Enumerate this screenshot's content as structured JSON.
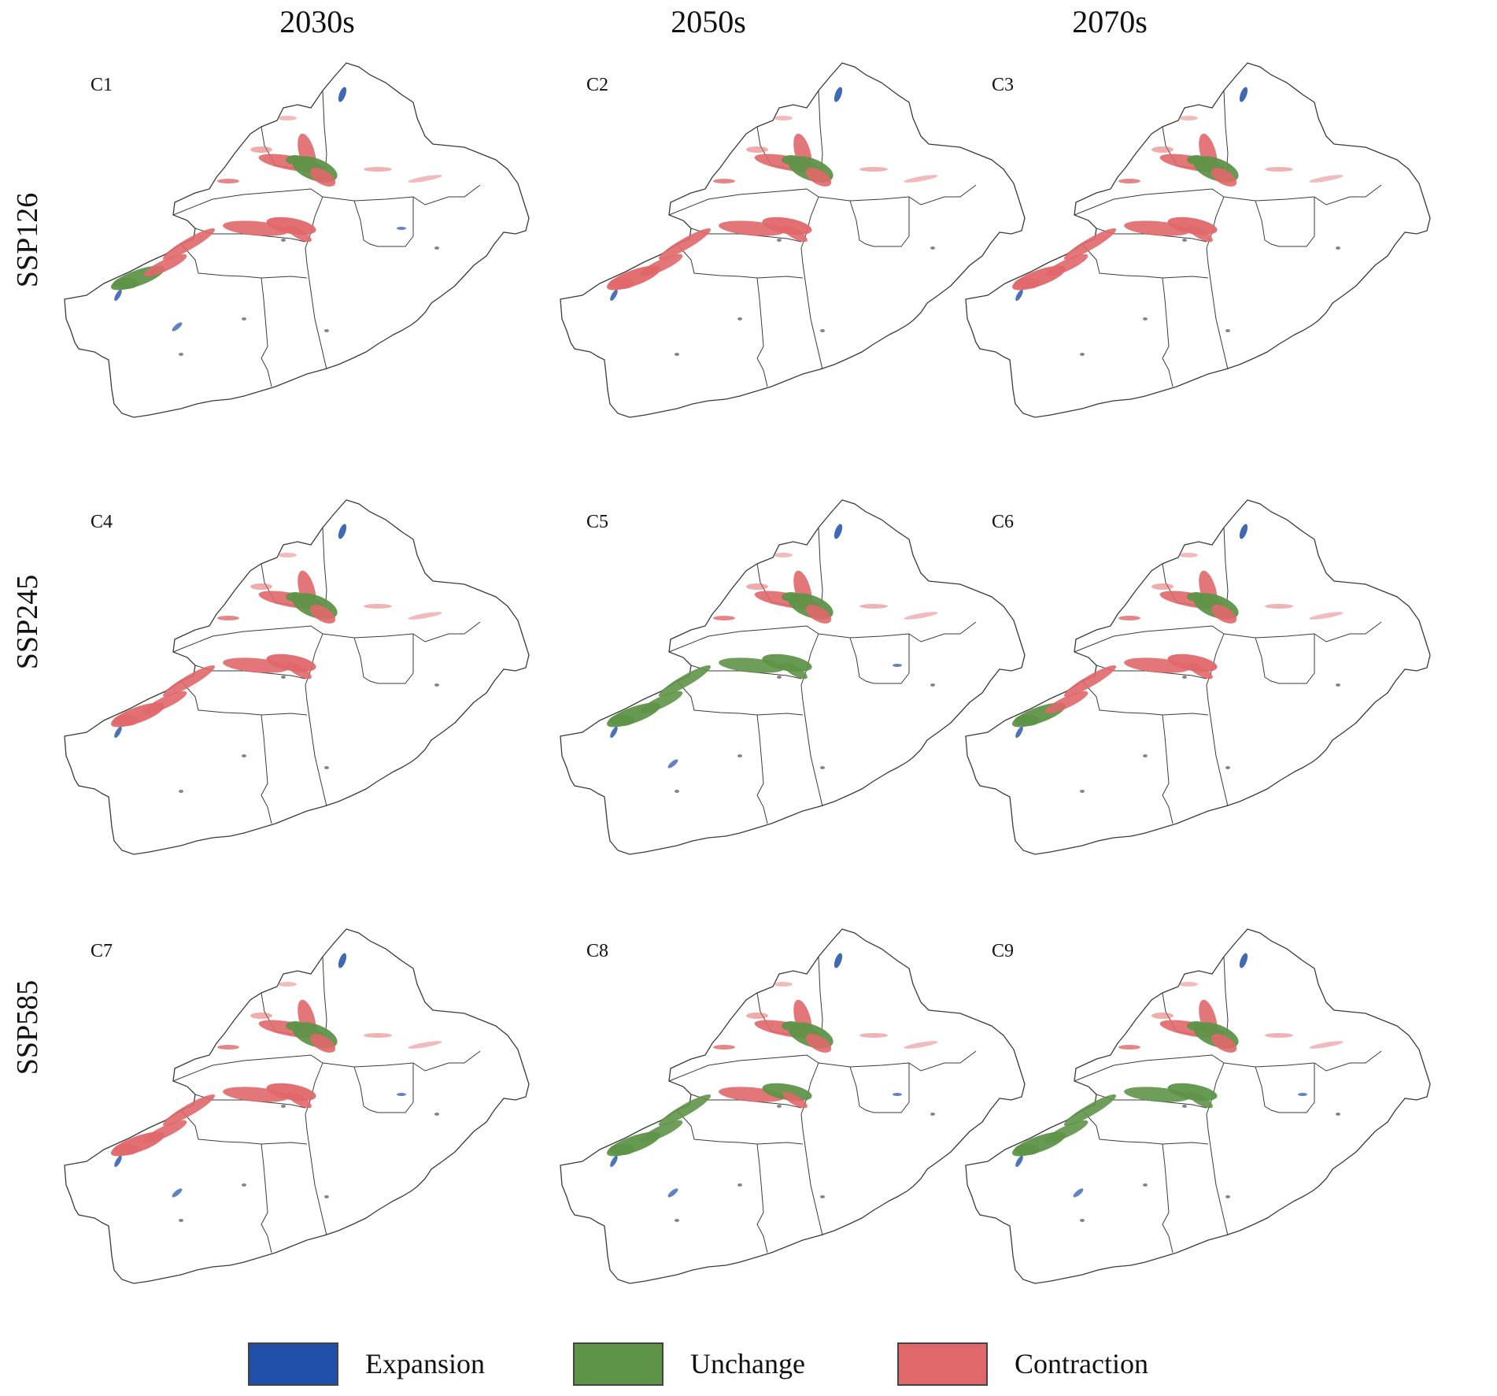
{
  "columns": [
    "2030s",
    "2050s",
    "2070s"
  ],
  "rows": [
    "SSP126",
    "SSP245",
    "SSP585"
  ],
  "panels": [
    {
      "id": "C1",
      "west": "mixed",
      "central": "contraction",
      "north": "mixed",
      "expansion": "some"
    },
    {
      "id": "C2",
      "west": "contraction",
      "central": "contraction",
      "north": "mixed",
      "expansion": "little"
    },
    {
      "id": "C3",
      "west": "contraction",
      "central": "contraction",
      "north": "mixed",
      "expansion": "little"
    },
    {
      "id": "C4",
      "west": "contraction",
      "central": "contraction",
      "north": "mixed",
      "expansion": "little"
    },
    {
      "id": "C5",
      "west": "unchanged",
      "central": "unchanged",
      "north": "mixed",
      "expansion": "some"
    },
    {
      "id": "C6",
      "west": "mixed",
      "central": "contraction",
      "north": "mixed",
      "expansion": "little"
    },
    {
      "id": "C7",
      "west": "contraction",
      "central": "contraction",
      "north": "mixed",
      "expansion": "some"
    },
    {
      "id": "C8",
      "west": "unchanged",
      "central": "mixed",
      "north": "mixed",
      "expansion": "some"
    },
    {
      "id": "C9",
      "west": "unchanged",
      "central": "unchanged",
      "north": "mixed",
      "expansion": "some"
    }
  ],
  "legend": [
    {
      "label": "Expansion",
      "color": "#1f4fa8"
    },
    {
      "label": "Unchange",
      "color": "#5e9448"
    },
    {
      "label": "Contraction",
      "color": "#e0676a"
    }
  ],
  "colors": {
    "border": "#3a3a3a",
    "expansion": "#1f4fa8",
    "unchanged": "#5e9448",
    "contraction": "#e0676a"
  }
}
